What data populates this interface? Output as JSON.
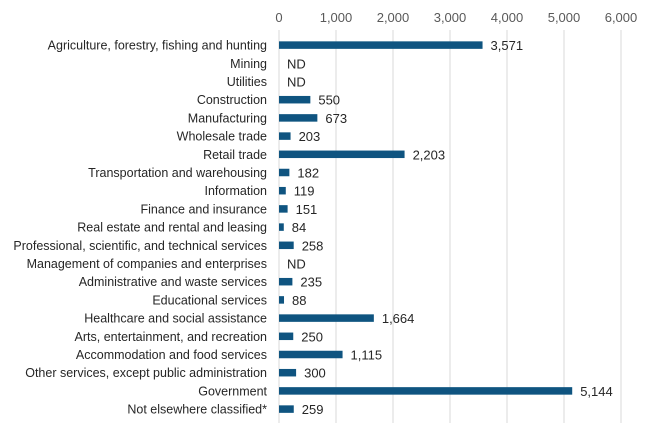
{
  "chart_data": {
    "type": "bar",
    "orientation": "horizontal",
    "title": "",
    "xlabel": "",
    "ylabel": "",
    "xlim": [
      0,
      6000
    ],
    "ticks": [
      0,
      1000,
      2000,
      3000,
      4000,
      5000,
      6000
    ],
    "tick_labels": [
      "0",
      "1,000",
      "2,000",
      "3,000",
      "4,000",
      "5,000",
      "6,000"
    ],
    "grid": true,
    "axis_position": "top",
    "bar_color": "#0f5480",
    "categories": [
      "Agriculture, forestry, fishing and hunting",
      "Mining",
      "Utilities",
      "Construction",
      "Manufacturing",
      "Wholesale trade",
      "Retail trade",
      "Transportation and warehousing",
      "Information",
      "Finance and insurance",
      "Real estate and rental and leasing",
      "Professional, scientific, and technical services",
      "Management of companies and enterprises",
      "Administrative and waste services",
      "Educational services",
      "Healthcare and social assistance",
      "Arts, entertainment, and recreation",
      "Accommodation and food services",
      "Other services, except public administration",
      "Government",
      "Not elsewhere classified*"
    ],
    "values": [
      3571,
      null,
      null,
      550,
      673,
      203,
      2203,
      182,
      119,
      151,
      84,
      258,
      null,
      235,
      88,
      1664,
      250,
      1115,
      300,
      5144,
      259
    ],
    "labels": [
      "3,571",
      "ND",
      "ND",
      "550",
      "673",
      "203",
      "2,203",
      "182",
      "119",
      "151",
      "84",
      "258",
      "ND",
      "235",
      "88",
      "1,664",
      "250",
      "1,115",
      "300",
      "5,144",
      "259"
    ]
  }
}
